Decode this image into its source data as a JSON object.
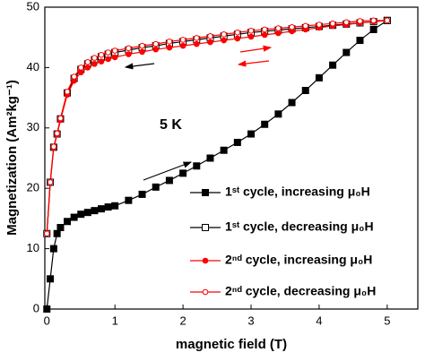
{
  "chart_data": {
    "type": "line",
    "x_label": "magnetic field (T)",
    "y_label": "Magnetization (Am²kg⁻¹)",
    "annotation": "5 K",
    "xlim": [
      -0.03,
      5.45
    ],
    "xticks": [
      0,
      1,
      2,
      3,
      4,
      5
    ],
    "ylim": [
      0,
      50
    ],
    "yticks": [
      0,
      10,
      20,
      30,
      40,
      50
    ],
    "series": [
      {
        "name": "1ˢᵗ cycle, increasing μ₀H",
        "color": "#000000",
        "marker": "square",
        "filled": true,
        "x": [
          0,
          0.05,
          0.1,
          0.15,
          0.2,
          0.3,
          0.4,
          0.5,
          0.6,
          0.7,
          0.8,
          0.9,
          1.0,
          1.2,
          1.4,
          1.6,
          1.8,
          2.0,
          2.2,
          2.4,
          2.6,
          2.8,
          3.0,
          3.2,
          3.4,
          3.6,
          3.8,
          4.0,
          4.2,
          4.4,
          4.6,
          4.8,
          5.0
        ],
        "values": [
          0,
          5,
          10,
          12.5,
          13.5,
          14.5,
          15.2,
          15.7,
          16,
          16.3,
          16.6,
          16.9,
          17.1,
          18,
          19,
          20.2,
          21.3,
          22.5,
          23.7,
          25,
          26.3,
          27.6,
          29,
          30.6,
          32.3,
          34.2,
          36.2,
          38.3,
          40.4,
          42.5,
          44.5,
          46.3,
          47.8
        ]
      },
      {
        "name": "1ˢᵗ cycle, decreasing μ₀H",
        "color": "#000000",
        "marker": "square",
        "filled": false,
        "x": [
          5,
          4.8,
          4.6,
          4.4,
          4.2,
          4.0,
          3.8,
          3.6,
          3.4,
          3.2,
          3.0,
          2.8,
          2.6,
          2.4,
          2.2,
          2.0,
          1.8,
          1.6,
          1.4,
          1.2,
          1.0,
          0.9,
          0.8,
          0.7,
          0.6,
          0.5,
          0.4,
          0.3,
          0.2,
          0.15,
          0.1,
          0.05,
          0
        ],
        "values": [
          47.8,
          47.6,
          47.4,
          47.2,
          47.0,
          46.8,
          46.6,
          46.4,
          46.2,
          46.0,
          45.8,
          45.5,
          45.2,
          44.9,
          44.6,
          44.3,
          44.0,
          43.6,
          43.3,
          42.9,
          42.5,
          42.2,
          41.8,
          41.3,
          40.6,
          39.7,
          38.2,
          35.8,
          31.5,
          29.0,
          26.8,
          21.0,
          12.5
        ]
      },
      {
        "name": "2ⁿᵈ cycle, increasing μ₀H",
        "color": "#ff0000",
        "marker": "circle",
        "filled": true,
        "x": [
          0,
          0.05,
          0.1,
          0.15,
          0.2,
          0.3,
          0.4,
          0.5,
          0.6,
          0.7,
          0.8,
          0.9,
          1.0,
          1.2,
          1.4,
          1.6,
          1.8,
          2.0,
          2.2,
          2.4,
          2.6,
          2.8,
          3.0,
          3.2,
          3.4,
          3.6,
          3.8,
          4.0,
          4.2,
          4.4,
          4.6,
          4.8,
          5.0
        ],
        "values": [
          12.5,
          21.0,
          26.7,
          28.9,
          31.3,
          35.5,
          37.8,
          39.2,
          40.0,
          40.6,
          41.0,
          41.4,
          41.7,
          42.2,
          42.6,
          43.0,
          43.3,
          43.6,
          43.9,
          44.2,
          44.5,
          44.8,
          45.1,
          45.4,
          45.7,
          46.0,
          46.3,
          46.6,
          46.9,
          47.1,
          47.4,
          47.6,
          47.8
        ]
      },
      {
        "name": "2ⁿᵈ cycle, decreasing μ₀H",
        "color": "#ff0000",
        "marker": "circle",
        "filled": false,
        "x": [
          5,
          4.8,
          4.6,
          4.4,
          4.2,
          4.0,
          3.8,
          3.6,
          3.4,
          3.2,
          3.0,
          2.8,
          2.6,
          2.4,
          2.2,
          2.0,
          1.8,
          1.6,
          1.4,
          1.2,
          1.0,
          0.9,
          0.8,
          0.7,
          0.6,
          0.5,
          0.4,
          0.3,
          0.2,
          0.15,
          0.1,
          0.05,
          0
        ],
        "values": [
          47.8,
          47.8,
          47.7,
          47.5,
          47.3,
          47.1,
          46.9,
          46.7,
          46.5,
          46.3,
          46.1,
          45.8,
          45.5,
          45.2,
          44.9,
          44.6,
          44.3,
          43.9,
          43.6,
          43.2,
          42.8,
          42.5,
          42.1,
          41.6,
          40.9,
          40.0,
          38.5,
          36.0,
          31.6,
          29.1,
          26.9,
          21.0,
          12.5
        ]
      }
    ]
  }
}
